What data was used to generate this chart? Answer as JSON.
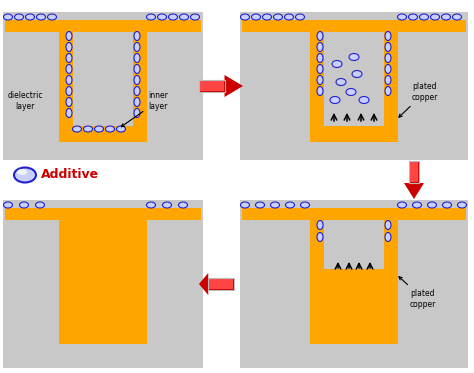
{
  "fig_width": 4.74,
  "fig_height": 3.73,
  "dpi": 100,
  "bg_color": "#ffffff",
  "panel_bg": "#c8c8c8",
  "copper_color": "#FFA500",
  "additive_fill": "#c8d0ff",
  "additive_edge": "#2222cc",
  "arrow_red_dark": "#cc0000",
  "arrow_red_light": "#ff4444",
  "arrow_gray": "#bbbbbb",
  "labels": {
    "dielectric_layer": "dielectric\nlayer",
    "inner_layer": "inner\nlayer",
    "plated_copper_tr": "plated\ncopper",
    "plated_copper_br": "plated\ncopper",
    "additive": "Additive"
  }
}
